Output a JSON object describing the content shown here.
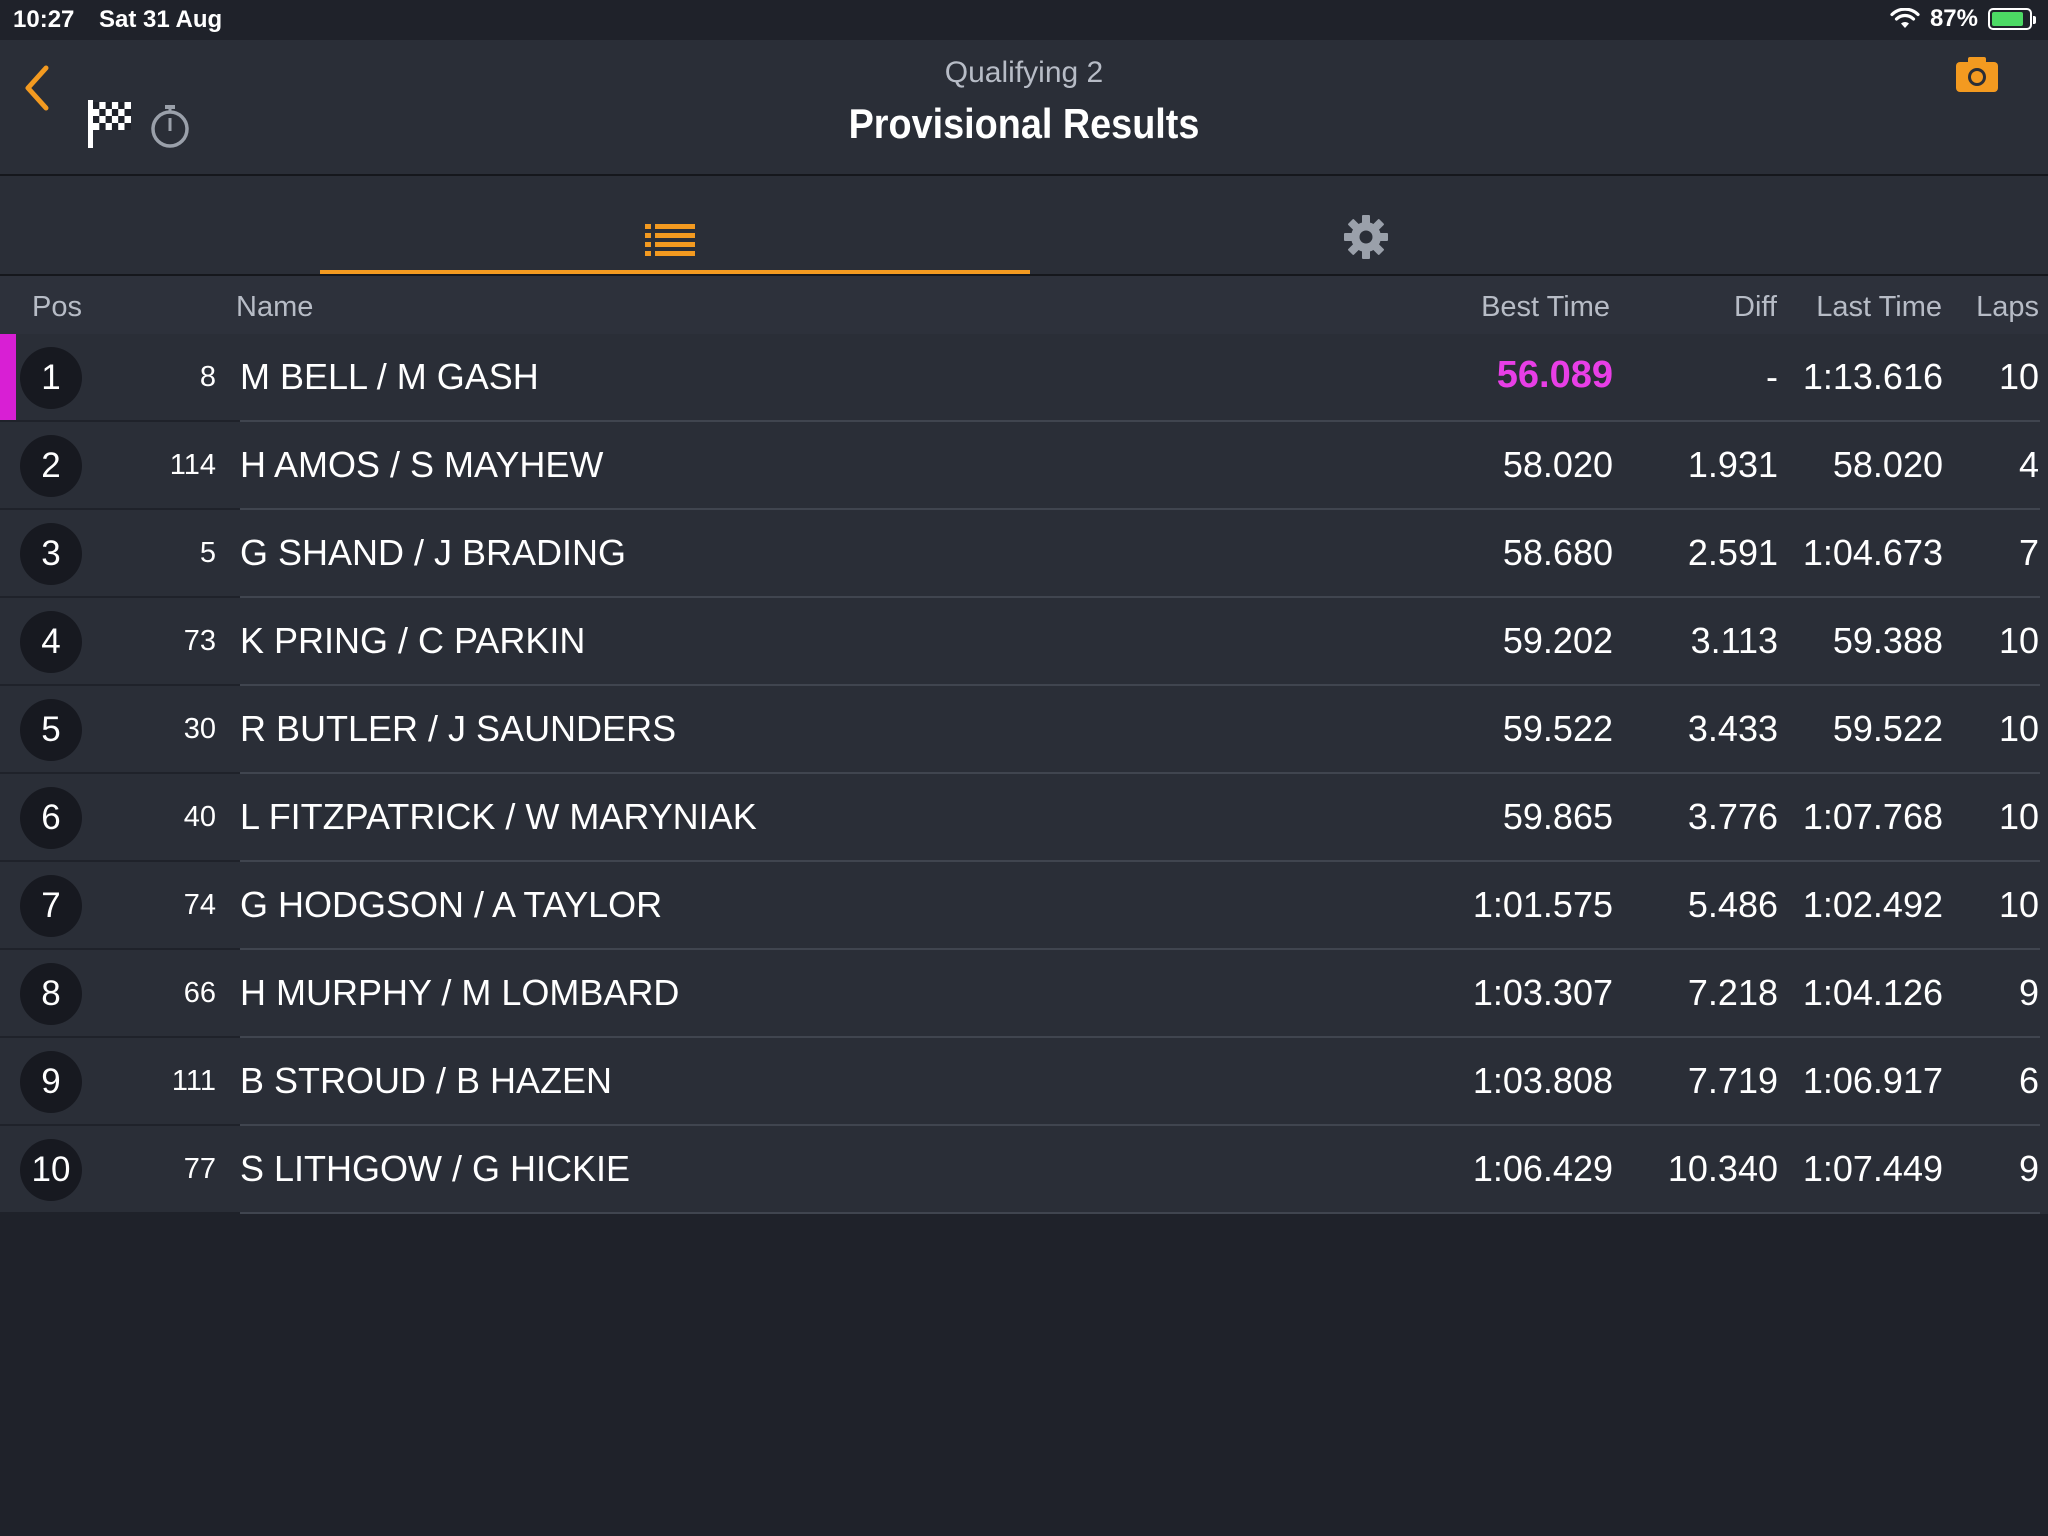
{
  "status_bar": {
    "time": "10:27",
    "date": "Sat 31 Aug",
    "battery_percent_label": "87%",
    "battery_level": 0.87,
    "accent": "#4cd964"
  },
  "header": {
    "subtitle": "Qualifying 2",
    "title": "Provisional Results",
    "back_icon": "chevron-left-icon",
    "camera_icon": "camera-icon",
    "flag_icon": "checkered-flag-icon",
    "timer_icon": "stopwatch-icon",
    "accent_color": "#f39a20"
  },
  "tabs": [
    {
      "name": "results-list",
      "icon": "list-icon",
      "selected": true
    },
    {
      "name": "settings",
      "icon": "gear-icon",
      "selected": false
    }
  ],
  "columns": {
    "pos": "Pos",
    "name": "Name",
    "best_time": "Best Time",
    "diff": "Diff",
    "last_time": "Last Time",
    "laps": "Laps"
  },
  "results": [
    {
      "pos": "1",
      "car": "8",
      "name": "M BELL / M GASH",
      "best": "56.089",
      "diff": "-",
      "last": "1:13.616",
      "laps": "10"
    },
    {
      "pos": "2",
      "car": "114",
      "name": "H AMOS / S MAYHEW",
      "best": "58.020",
      "diff": "1.931",
      "last": "58.020",
      "laps": "4"
    },
    {
      "pos": "3",
      "car": "5",
      "name": "G SHAND / J BRADING",
      "best": "58.680",
      "diff": "2.591",
      "last": "1:04.673",
      "laps": "7"
    },
    {
      "pos": "4",
      "car": "73",
      "name": "K PRING / C PARKIN",
      "best": "59.202",
      "diff": "3.113",
      "last": "59.388",
      "laps": "10"
    },
    {
      "pos": "5",
      "car": "30",
      "name": "R BUTLER / J SAUNDERS",
      "best": "59.522",
      "diff": "3.433",
      "last": "59.522",
      "laps": "10"
    },
    {
      "pos": "6",
      "car": "40",
      "name": "L FITZPATRICK / W MARYNIAK",
      "best": "59.865",
      "diff": "3.776",
      "last": "1:07.768",
      "laps": "10"
    },
    {
      "pos": "7",
      "car": "74",
      "name": "G HODGSON / A TAYLOR",
      "best": "1:01.575",
      "diff": "5.486",
      "last": "1:02.492",
      "laps": "10"
    },
    {
      "pos": "8",
      "car": "66",
      "name": "H MURPHY / M LOMBARD",
      "best": "1:03.307",
      "diff": "7.218",
      "last": "1:04.126",
      "laps": "9"
    },
    {
      "pos": "9",
      "car": "111",
      "name": "B STROUD / B HAZEN",
      "best": "1:03.808",
      "diff": "7.719",
      "last": "1:06.917",
      "laps": "6"
    },
    {
      "pos": "10",
      "car": "77",
      "name": "S LITHGOW / G HICKIE",
      "best": "1:06.429",
      "diff": "10.340",
      "last": "1:07.449",
      "laps": "9"
    }
  ],
  "colors": {
    "fastest_lap": "#e83ee6",
    "leader_marker": "#d81fd4",
    "tab_accent": "#f39a20"
  }
}
